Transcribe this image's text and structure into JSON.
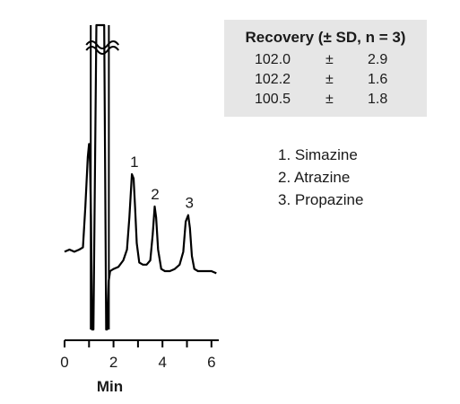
{
  "recovery": {
    "title": "Recovery (± SD, n = 3)",
    "rows": [
      {
        "value": "102.0",
        "pm": "±",
        "sd": "2.9"
      },
      {
        "value": "102.2",
        "pm": "±",
        "sd": "1.6"
      },
      {
        "value": "100.5",
        "pm": "±",
        "sd": "1.8"
      }
    ]
  },
  "legend": {
    "items": [
      "1. Simazine",
      "2. Atrazine",
      "3. Propazine"
    ]
  },
  "chart_data": {
    "type": "line",
    "title": "",
    "xlabel": "Min",
    "ylabel": "",
    "xlim": [
      0,
      6.3
    ],
    "xticks": [
      0,
      1,
      2,
      3,
      4,
      5,
      6
    ],
    "xtick_labels": [
      "0",
      "",
      "2",
      "",
      "4",
      "",
      "6"
    ],
    "grid": false,
    "peak_labels": [
      {
        "label": "1",
        "x": 2.85
      },
      {
        "label": "2",
        "x": 3.7
      },
      {
        "label": "3",
        "x": 5.1
      }
    ],
    "series": [
      {
        "values_note": "",
        "x": [
          0.0,
          0.2,
          0.4,
          0.6,
          0.75,
          0.85,
          0.95,
          1.0,
          1.04,
          1.08,
          1.12,
          1.18,
          1.3,
          1.5,
          1.62,
          1.7,
          1.74,
          1.8,
          1.86,
          2.0,
          2.2,
          2.4,
          2.55,
          2.65,
          2.75,
          2.82,
          2.88,
          2.95,
          3.05,
          3.2,
          3.35,
          3.5,
          3.6,
          3.68,
          3.74,
          3.82,
          3.95,
          4.1,
          4.3,
          4.5,
          4.7,
          4.85,
          4.95,
          5.05,
          5.12,
          5.2,
          5.3,
          5.45,
          5.6,
          5.8,
          6.0,
          6.2
        ],
        "y": [
          0.14,
          0.15,
          0.14,
          0.15,
          0.16,
          0.35,
          0.58,
          0.64,
          0.55,
          0.3,
          -0.4,
          -0.4,
          1.3,
          1.3,
          1.3,
          -0.25,
          -0.25,
          0.0,
          0.05,
          0.06,
          0.07,
          0.1,
          0.15,
          0.3,
          0.5,
          0.48,
          0.35,
          0.18,
          0.09,
          0.08,
          0.08,
          0.1,
          0.22,
          0.35,
          0.3,
          0.15,
          0.06,
          0.05,
          0.05,
          0.06,
          0.08,
          0.14,
          0.28,
          0.31,
          0.25,
          0.12,
          0.06,
          0.05,
          0.05,
          0.05,
          0.05,
          0.04
        ]
      }
    ]
  }
}
